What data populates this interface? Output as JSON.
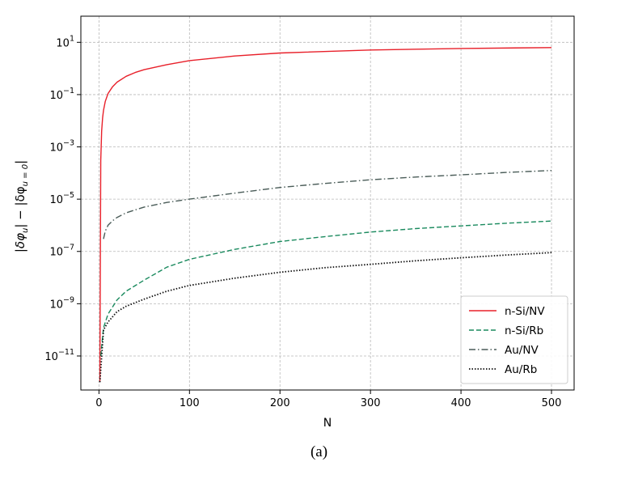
{
  "chart_data": {
    "type": "line",
    "xlabel": "N",
    "ylabel": "|δφ_u| − |δφ_u=0|",
    "ylabel_parts": {
      "a": "|δφ",
      "a_sub": "u",
      "b": "| − |δφ",
      "b_sub": "u = 0",
      "c": "|"
    },
    "y_scale": "log",
    "xlim": [
      -20,
      525
    ],
    "ylim": [
      5e-13,
      100
    ],
    "x_ticks": [
      0,
      100,
      200,
      300,
      400,
      500
    ],
    "x_tick_labels": [
      "0",
      "100",
      "200",
      "300",
      "400",
      "500"
    ],
    "y_ticks": [
      10,
      0.1,
      0.001,
      1e-05,
      1e-07,
      1e-09,
      1e-11
    ],
    "y_tick_labels": [
      {
        "base": "10",
        "exp": "1"
      },
      {
        "base": "10",
        "exp": "−1"
      },
      {
        "base": "10",
        "exp": "−3"
      },
      {
        "base": "10",
        "exp": "−5"
      },
      {
        "base": "10",
        "exp": "−7"
      },
      {
        "base": "10",
        "exp": "−9"
      },
      {
        "base": "10",
        "exp": "−11"
      }
    ],
    "grid": true,
    "legend_position": "bottom-right",
    "series": [
      {
        "name": "n-Si/NV",
        "color": "#e8202a",
        "dash": "solid",
        "x": [
          1,
          2,
          3,
          4,
          5,
          7,
          10,
          15,
          20,
          30,
          40,
          50,
          75,
          100,
          150,
          200,
          300,
          400,
          500
        ],
        "y": [
          1e-12,
          0.0003,
          0.004,
          0.013,
          0.025,
          0.055,
          0.11,
          0.2,
          0.3,
          0.5,
          0.7,
          0.9,
          1.4,
          2,
          3,
          3.9,
          5.1,
          5.8,
          6.3
        ]
      },
      {
        "name": "n-Si/Rb",
        "color": "#1a8a5e",
        "dash": "dashed",
        "x": [
          2,
          5,
          10,
          20,
          30,
          50,
          75,
          100,
          150,
          200,
          250,
          300,
          350,
          400,
          450,
          500
        ],
        "y": [
          1e-11,
          1.2e-10,
          4e-10,
          1.4e-09,
          3e-09,
          8e-09,
          2.5e-08,
          5e-08,
          1.2e-07,
          2.4e-07,
          3.7e-07,
          5.5e-07,
          7.5e-07,
          9.5e-07,
          1.2e-06,
          1.45e-06
        ]
      },
      {
        "name": "Au/NV",
        "color": "#4a5c58",
        "dash": "dashdot",
        "x": [
          5,
          7,
          10,
          15,
          20,
          30,
          50,
          75,
          100,
          150,
          200,
          250,
          300,
          350,
          400,
          450,
          500
        ],
        "y": [
          3e-07,
          6e-07,
          1e-06,
          1.5e-06,
          2e-06,
          3e-06,
          5e-06,
          7.5e-06,
          1e-05,
          1.7e-05,
          2.8e-05,
          4e-05,
          5.5e-05,
          7e-05,
          8.5e-05,
          0.000105,
          0.000125
        ]
      },
      {
        "name": "Au/Rb",
        "color": "#111111",
        "dash": "dotted",
        "x": [
          1,
          2,
          5,
          10,
          20,
          30,
          50,
          75,
          100,
          150,
          200,
          250,
          300,
          350,
          400,
          450,
          500
        ],
        "y": [
          1e-12,
          3e-12,
          1e-10,
          2e-10,
          5e-10,
          8e-10,
          1.5e-09,
          3e-09,
          5e-09,
          9.5e-09,
          1.6e-08,
          2.4e-08,
          3.2e-08,
          4.4e-08,
          5.7e-08,
          7.3e-08,
          9e-08
        ]
      }
    ]
  },
  "caption": "(a)"
}
